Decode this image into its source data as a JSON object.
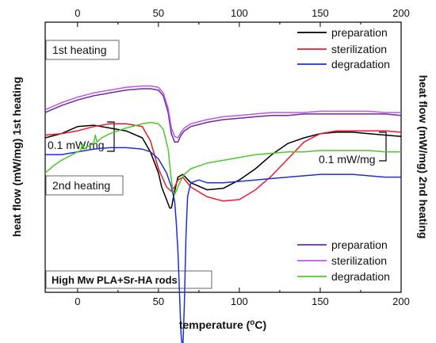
{
  "chart_data": {
    "type": "line",
    "xlabel": "temperature (°C)",
    "ylabel_left": "heat flow (mW/mg) 1st heating",
    "ylabel_right": "heat flow (mW/mg) 2nd heating",
    "xlim": [
      -20,
      200
    ],
    "xticks": [
      0,
      50,
      100,
      150,
      200
    ],
    "scale_bar_label": "0.1 mW/mg",
    "annotation": "High Mw PLA+Sr-HA rods",
    "grid": false,
    "panels": [
      {
        "name": "1st heating",
        "legend_position": "top-right",
        "series": [
          {
            "name": "preparation",
            "color": "#000000",
            "x": [
              -20,
              -10,
              0,
              10,
              20,
              30,
              40,
              45,
              50,
              52,
              55,
              57,
              58,
              60,
              62,
              65,
              70,
              80,
              90,
              100,
              110,
              120,
              130,
              140,
              150,
              160,
              170,
              180,
              190,
              200
            ],
            "y": [
              0.09,
              0.093,
              0.098,
              0.099,
              0.097,
              0.095,
              0.09,
              0.08,
              0.065,
              0.055,
              0.046,
              0.04,
              0.04,
              0.052,
              0.062,
              0.064,
              0.058,
              0.053,
              0.054,
              0.06,
              0.068,
              0.078,
              0.086,
              0.09,
              0.093,
              0.094,
              0.094,
              0.093,
              0.092,
              0.091
            ]
          },
          {
            "name": "sterilization",
            "color": "#e8192c",
            "x": [
              -20,
              -10,
              0,
              10,
              20,
              30,
              40,
              45,
              50,
              55,
              58,
              60,
              62,
              65,
              70,
              80,
              90,
              100,
              110,
              120,
              130,
              140,
              150,
              160,
              170,
              180,
              190,
              200
            ],
            "y": [
              0.092,
              0.093,
              0.095,
              0.098,
              0.1,
              0.1,
              0.098,
              0.088,
              0.068,
              0.055,
              0.052,
              0.055,
              0.06,
              0.062,
              0.055,
              0.048,
              0.045,
              0.046,
              0.053,
              0.063,
              0.075,
              0.087,
              0.093,
              0.095,
              0.095,
              0.095,
              0.095,
              0.094
            ]
          },
          {
            "name": "degradation",
            "color": "#1f2fd6",
            "x": [
              -20,
              -10,
              0,
              10,
              20,
              30,
              40,
              45,
              50,
              55,
              58,
              60,
              61,
              62,
              63,
              64,
              65,
              66,
              67,
              68,
              70,
              75,
              80,
              90,
              100,
              110,
              120,
              130,
              140,
              150,
              160,
              170,
              180,
              190,
              200
            ],
            "y": [
              0.078,
              0.078,
              0.08,
              0.082,
              0.083,
              0.083,
              0.082,
              0.08,
              0.075,
              0.065,
              0.055,
              0.045,
              0.03,
              0.01,
              -0.02,
              -0.05,
              -0.062,
              -0.03,
              0.02,
              0.048,
              0.058,
              0.06,
              0.058,
              0.058,
              0.059,
              0.06,
              0.061,
              0.062,
              0.063,
              0.064,
              0.064,
              0.064,
              0.063,
              0.062,
              0.062
            ]
          }
        ]
      },
      {
        "name": "2nd heating",
        "legend_position": "bottom-right",
        "series": [
          {
            "name": "preparation",
            "color": "#6a2aa0",
            "x": [
              -20,
              -10,
              0,
              10,
              20,
              30,
              40,
              45,
              50,
              53,
              56,
              58,
              60,
              62,
              64,
              66,
              70,
              80,
              90,
              100,
              110,
              120,
              130,
              140,
              150,
              160,
              170,
              180,
              190,
              200
            ],
            "y": [
              0.108,
              0.113,
              0.117,
              0.12,
              0.122,
              0.124,
              0.125,
              0.125,
              0.124,
              0.12,
              0.108,
              0.093,
              0.087,
              0.087,
              0.092,
              0.095,
              0.098,
              0.101,
              0.103,
              0.104,
              0.105,
              0.106,
              0.106,
              0.107,
              0.107,
              0.107,
              0.107,
              0.107,
              0.107,
              0.106
            ]
          },
          {
            "name": "sterilization",
            "color": "#c054e6",
            "x": [
              -20,
              -10,
              0,
              10,
              20,
              30,
              40,
              45,
              50,
              53,
              56,
              58,
              60,
              62,
              64,
              66,
              70,
              80,
              90,
              100,
              110,
              120,
              130,
              140,
              150,
              160,
              170,
              180,
              190,
              200
            ],
            "y": [
              0.11,
              0.115,
              0.119,
              0.122,
              0.124,
              0.126,
              0.127,
              0.127,
              0.126,
              0.122,
              0.111,
              0.097,
              0.091,
              0.09,
              0.094,
              0.097,
              0.1,
              0.103,
              0.105,
              0.106,
              0.107,
              0.108,
              0.108,
              0.108,
              0.109,
              0.109,
              0.109,
              0.109,
              0.108,
              0.108
            ]
          },
          {
            "name": "degradation",
            "color": "#4cc82a",
            "x": [
              -20,
              -15,
              -10,
              -5,
              0,
              2,
              3,
              4,
              5,
              10,
              11,
              12,
              13,
              15,
              20,
              30,
              40,
              45,
              50,
              53,
              56,
              58,
              59,
              60,
              61,
              62,
              64,
              66,
              70,
              80,
              90,
              100,
              110,
              120,
              130,
              140,
              150,
              160,
              170,
              180,
              190,
              200
            ],
            "y": [
              0.065,
              0.07,
              0.074,
              0.077,
              0.08,
              0.081,
              0.086,
              0.082,
              0.083,
              0.086,
              0.092,
              0.087,
              0.088,
              0.09,
              0.093,
              0.097,
              0.1,
              0.101,
              0.1,
              0.096,
              0.082,
              0.06,
              0.052,
              0.05,
              0.052,
              0.055,
              0.06,
              0.064,
              0.068,
              0.072,
              0.074,
              0.076,
              0.078,
              0.079,
              0.08,
              0.08,
              0.081,
              0.081,
              0.081,
              0.081,
              0.08,
              0.08
            ]
          }
        ]
      }
    ]
  }
}
